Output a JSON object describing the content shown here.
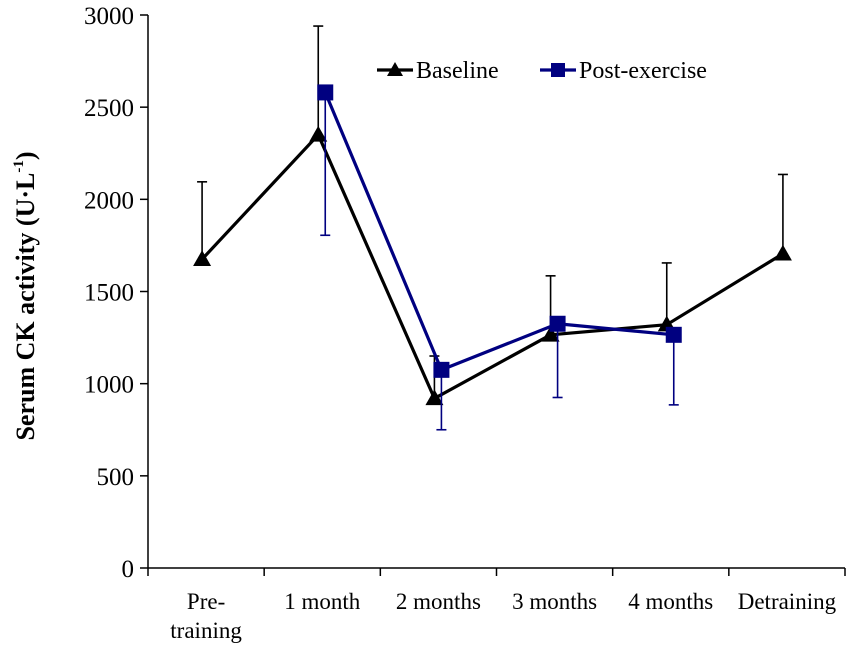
{
  "chart_data": {
    "type": "line",
    "title": "",
    "xlabel": "",
    "ylabel": {
      "main": "Serum CK activity (U·L",
      "superscript": "-1",
      "close": ")"
    },
    "ylim": [
      0,
      3000
    ],
    "yticks": [
      0,
      500,
      1000,
      1500,
      2000,
      2500,
      3000
    ],
    "categories": [
      [
        "Pre-",
        "training"
      ],
      [
        "1 month"
      ],
      [
        "2 months"
      ],
      [
        "3 months"
      ],
      [
        "4 months"
      ],
      [
        "Detraining"
      ]
    ],
    "legend_position": "top-right",
    "series": [
      {
        "name": "Baseline",
        "color": "#000000",
        "marker": "triangle",
        "values": [
          1675,
          2350,
          920,
          1265,
          1320,
          1705
        ],
        "error_plus": [
          420,
          590,
          230,
          320,
          335,
          430
        ],
        "error_minus": [
          0,
          0,
          0,
          0,
          0,
          0
        ]
      },
      {
        "name": "Post-exercise",
        "color": "#000080",
        "marker": "square",
        "values": [
          null,
          2580,
          1075,
          1325,
          1265,
          null
        ],
        "error_plus": [
          0,
          0,
          0,
          0,
          0,
          0
        ],
        "error_minus": [
          0,
          775,
          325,
          400,
          380,
          0
        ]
      }
    ]
  }
}
